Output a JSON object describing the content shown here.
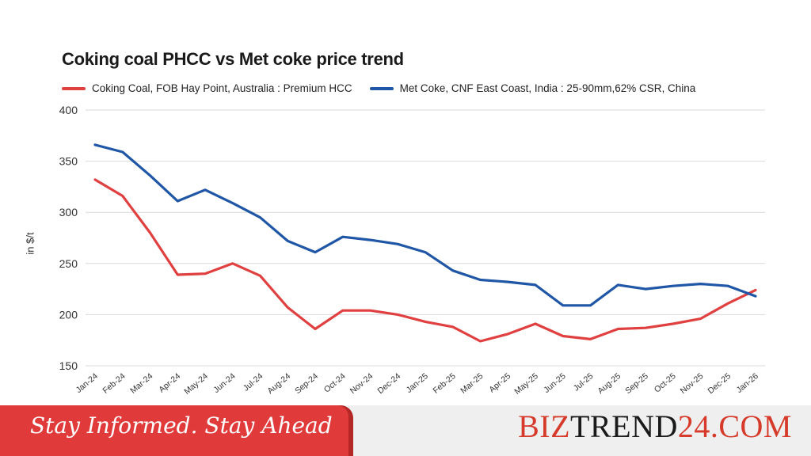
{
  "chart_data": {
    "type": "line",
    "title": "Coking coal PHCC vs Met coke price trend",
    "ylabel": "in $/t",
    "xlabel": "",
    "ylim": [
      150,
      400
    ],
    "yticks": [
      150,
      200,
      250,
      300,
      350,
      400
    ],
    "grid": true,
    "legend_position": "top",
    "categories": [
      "Jan-24",
      "Feb-24",
      "Mar-24",
      "Apr-24",
      "May-24",
      "Jun-24",
      "Jul-24",
      "Aug-24",
      "Sep-24",
      "Oct-24",
      "Nov-24",
      "Dec-24",
      "Jan-25",
      "Feb-25",
      "Mar-25",
      "Apr-25",
      "May-25",
      "Jun-25",
      "Jul-25",
      "Aug-25",
      "Sep-25",
      "Oct-25",
      "Nov-25",
      "Dec-25",
      "Jan-26"
    ],
    "series": [
      {
        "name": "Coking Coal, FOB Hay Point, Australia : Premium HCC",
        "color": "#e04040",
        "values": [
          332,
          316,
          280,
          239,
          240,
          250,
          238,
          207,
          186,
          204,
          204,
          200,
          193,
          188,
          174,
          181,
          191,
          179,
          176,
          186,
          187,
          191,
          196,
          211,
          224
        ]
      },
      {
        "name": "Met Coke, CNF East Coast, India : 25-90mm,62% CSR, China",
        "color": "#1f56a6",
        "values": [
          366,
          359,
          336,
          311,
          322,
          309,
          295,
          272,
          261,
          276,
          273,
          269,
          261,
          243,
          234,
          232,
          229,
          209,
          209,
          229,
          225,
          228,
          230,
          228,
          218
        ]
      }
    ]
  },
  "banner": {
    "tagline": "Stay Informed. Stay Ahead",
    "brand_a": "BIZ",
    "brand_b": "TREND",
    "brand_c": "24.COM"
  }
}
